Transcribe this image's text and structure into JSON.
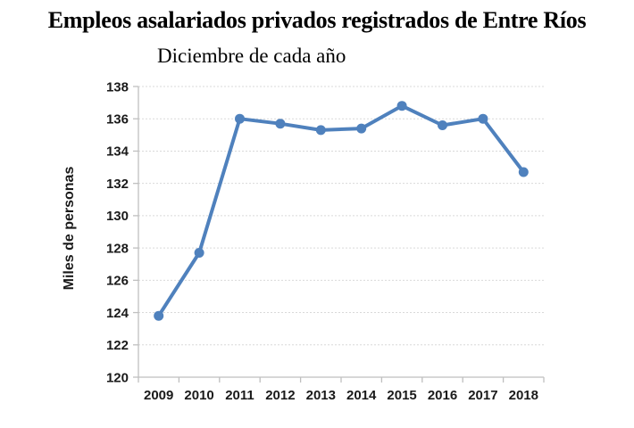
{
  "title": "Empleos asalariados privados registrados de Entre Ríos",
  "subtitle": "Diciembre de cada año",
  "chart_data": {
    "type": "line",
    "title": "Empleos asalariados privados registrados de Entre Ríos",
    "subtitle": "Diciembre de cada año",
    "xlabel": "",
    "ylabel": "Miles de personas",
    "categories": [
      "2009",
      "2010",
      "2011",
      "2012",
      "2013",
      "2014",
      "2015",
      "2016",
      "2017",
      "2018"
    ],
    "series": [
      {
        "name": "Empleos asalariados privados registrados",
        "values": [
          123.8,
          127.7,
          136.0,
          135.7,
          135.3,
          135.4,
          136.8,
          135.6,
          136.0,
          132.7
        ]
      }
    ],
    "ylim": [
      120,
      138
    ],
    "ytick_step": 2,
    "yticks": [
      120,
      122,
      124,
      126,
      128,
      130,
      132,
      134,
      136,
      138
    ],
    "grid": "horizontal-dashed",
    "legend": "none",
    "colors": {
      "line": "#4F81BD",
      "marker": "#4F81BD",
      "gridline": "#d9d9d9",
      "axis": "#bfbfbf",
      "tick_text": "#1a1a1a",
      "title_text": "#000000",
      "background": "#ffffff"
    }
  }
}
